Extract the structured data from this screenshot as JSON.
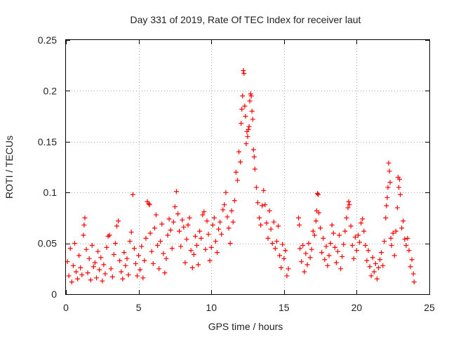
{
  "chart_data": {
    "type": "scatter",
    "title": "Day 331 of 2019, Rate Of TEC Index for receiver laut",
    "xlabel": "GPS time / hours",
    "ylabel": "ROTI / TECUs",
    "xlim": [
      0,
      25
    ],
    "ylim": [
      0,
      0.25
    ],
    "xticks": [
      0,
      5,
      10,
      15,
      20,
      25
    ],
    "xtick_labels": [
      "0",
      "5",
      "10",
      "15",
      "20",
      "25"
    ],
    "yticks": [
      0,
      0.05,
      0.1,
      0.15,
      0.2,
      0.25
    ],
    "ytick_labels": [
      "0",
      "0.05",
      "0.1",
      "0.15",
      "0.2",
      "0.25"
    ],
    "grid": true,
    "marker": "+",
    "color": "#ff0000",
    "series": [
      {
        "name": "ROTI",
        "points": [
          [
            0.1,
            0.032
          ],
          [
            0.2,
            0.018
          ],
          [
            0.3,
            0.045
          ],
          [
            0.4,
            0.012
          ],
          [
            0.5,
            0.028
          ],
          [
            0.6,
            0.05
          ],
          [
            0.7,
            0.022
          ],
          [
            0.8,
            0.015
          ],
          [
            0.9,
            0.038
          ],
          [
            1.0,
            0.026
          ],
          [
            1.1,
            0.019
          ],
          [
            1.2,
            0.058
          ],
          [
            1.25,
            0.068
          ],
          [
            1.3,
            0.075
          ],
          [
            1.4,
            0.044
          ],
          [
            1.5,
            0.021
          ],
          [
            1.6,
            0.035
          ],
          [
            1.7,
            0.014
          ],
          [
            1.8,
            0.048
          ],
          [
            1.9,
            0.027
          ],
          [
            2.0,
            0.031
          ],
          [
            2.1,
            0.016
          ],
          [
            2.2,
            0.042
          ],
          [
            2.3,
            0.024
          ],
          [
            2.4,
            0.036
          ],
          [
            2.5,
            0.013
          ],
          [
            2.6,
            0.029
          ],
          [
            2.7,
            0.02
          ],
          [
            2.8,
            0.046
          ],
          [
            2.9,
            0.057
          ],
          [
            3.0,
            0.058
          ],
          [
            3.1,
            0.025
          ],
          [
            3.2,
            0.017
          ],
          [
            3.3,
            0.039
          ],
          [
            3.4,
            0.05
          ],
          [
            3.5,
            0.067
          ],
          [
            3.6,
            0.072
          ],
          [
            3.7,
            0.033
          ],
          [
            3.8,
            0.022
          ],
          [
            3.9,
            0.015
          ],
          [
            4.0,
            0.041
          ],
          [
            4.1,
            0.028
          ],
          [
            4.2,
            0.035
          ],
          [
            4.3,
            0.019
          ],
          [
            4.4,
            0.052
          ],
          [
            4.5,
            0.061
          ],
          [
            4.6,
            0.098
          ],
          [
            4.7,
            0.045
          ],
          [
            4.8,
            0.03
          ],
          [
            4.9,
            0.018
          ],
          [
            5.0,
            0.038
          ],
          [
            5.1,
            0.024
          ],
          [
            5.2,
            0.047
          ],
          [
            5.3,
            0.016
          ],
          [
            5.4,
            0.033
          ],
          [
            5.5,
            0.055
          ],
          [
            5.6,
            0.091
          ],
          [
            5.7,
            0.089
          ],
          [
            5.75,
            0.088
          ],
          [
            5.8,
            0.06
          ],
          [
            5.9,
            0.042
          ],
          [
            6.0,
            0.03
          ],
          [
            6.1,
            0.065
          ],
          [
            6.2,
            0.078
          ],
          [
            6.3,
            0.048
          ],
          [
            6.4,
            0.025
          ],
          [
            6.5,
            0.052
          ],
          [
            6.6,
            0.069
          ],
          [
            6.7,
            0.04
          ],
          [
            6.8,
            0.021
          ],
          [
            6.9,
            0.035
          ],
          [
            7.0,
            0.058
          ],
          [
            7.1,
            0.074
          ],
          [
            7.2,
            0.063
          ],
          [
            7.3,
            0.045
          ],
          [
            7.4,
            0.071
          ],
          [
            7.5,
            0.086
          ],
          [
            7.6,
            0.101
          ],
          [
            7.7,
            0.079
          ],
          [
            7.8,
            0.062
          ],
          [
            7.9,
            0.047
          ],
          [
            8.0,
            0.073
          ],
          [
            8.1,
            0.066
          ],
          [
            8.2,
            0.031
          ],
          [
            8.3,
            0.054
          ],
          [
            8.4,
            0.068
          ],
          [
            8.5,
            0.075
          ],
          [
            8.6,
            0.043
          ],
          [
            8.7,
            0.026
          ],
          [
            8.8,
            0.039
          ],
          [
            8.9,
            0.057
          ],
          [
            9.0,
            0.048
          ],
          [
            9.1,
            0.029
          ],
          [
            9.2,
            0.062
          ],
          [
            9.3,
            0.055
          ],
          [
            9.4,
            0.078
          ],
          [
            9.5,
            0.081
          ],
          [
            9.6,
            0.044
          ],
          [
            9.7,
            0.072
          ],
          [
            9.8,
            0.059
          ],
          [
            9.9,
            0.033
          ],
          [
            10.0,
            0.046
          ],
          [
            10.1,
            0.068
          ],
          [
            10.2,
            0.075
          ],
          [
            10.3,
            0.052
          ],
          [
            10.4,
            0.041
          ],
          [
            10.5,
            0.064
          ],
          [
            10.6,
            0.071
          ],
          [
            10.7,
            0.059
          ],
          [
            10.8,
            0.083
          ],
          [
            10.9,
            0.088
          ],
          [
            11.0,
            0.1
          ],
          [
            11.1,
            0.076
          ],
          [
            11.2,
            0.065
          ],
          [
            11.3,
            0.05
          ],
          [
            11.4,
            0.082
          ],
          [
            11.5,
            0.071
          ],
          [
            11.6,
            0.092
          ],
          [
            11.7,
            0.12
          ],
          [
            11.8,
            0.112
          ],
          [
            11.9,
            0.14
          ],
          [
            12.0,
            0.13
          ],
          [
            12.05,
            0.168
          ],
          [
            12.1,
            0.182
          ],
          [
            12.15,
            0.195
          ],
          [
            12.2,
            0.22
          ],
          [
            12.25,
            0.217
          ],
          [
            12.3,
            0.185
          ],
          [
            12.35,
            0.175
          ],
          [
            12.4,
            0.148
          ],
          [
            12.45,
            0.16
          ],
          [
            12.5,
            0.155
          ],
          [
            12.55,
            0.162
          ],
          [
            12.6,
            0.165
          ],
          [
            12.65,
            0.19
          ],
          [
            12.7,
            0.197
          ],
          [
            12.75,
            0.195
          ],
          [
            12.8,
            0.18
          ],
          [
            12.85,
            0.172
          ],
          [
            12.9,
            0.142
          ],
          [
            12.95,
            0.135
          ],
          [
            13.0,
            0.123
          ],
          [
            13.1,
            0.105
          ],
          [
            13.2,
            0.09
          ],
          [
            13.3,
            0.075
          ],
          [
            13.4,
            0.068
          ],
          [
            13.5,
            0.087
          ],
          [
            13.6,
            0.102
          ],
          [
            13.7,
            0.088
          ],
          [
            13.8,
            0.07
          ],
          [
            13.9,
            0.055
          ],
          [
            14.0,
            0.082
          ],
          [
            14.1,
            0.064
          ],
          [
            14.2,
            0.05
          ],
          [
            14.3,
            0.071
          ],
          [
            14.4,
            0.045
          ],
          [
            14.5,
            0.052
          ],
          [
            14.6,
            0.067
          ],
          [
            14.7,
            0.038
          ],
          [
            14.8,
            0.026
          ],
          [
            14.9,
            0.049
          ],
          [
            15.0,
            0.035
          ],
          [
            15.1,
            0.043
          ],
          [
            15.2,
            0.018
          ],
          [
            15.3,
            0.025
          ],
          [
            16.0,
            0.075
          ],
          [
            16.05,
            0.068
          ],
          [
            16.1,
            0.045
          ],
          [
            16.2,
            0.032
          ],
          [
            16.3,
            0.048
          ],
          [
            16.4,
            0.022
          ],
          [
            16.5,
            0.04
          ],
          [
            16.6,
            0.029
          ],
          [
            16.7,
            0.05
          ],
          [
            16.8,
            0.036
          ],
          [
            16.9,
            0.044
          ],
          [
            17.0,
            0.062
          ],
          [
            17.1,
            0.058
          ],
          [
            17.2,
            0.072
          ],
          [
            17.25,
            0.082
          ],
          [
            17.3,
            0.099
          ],
          [
            17.35,
            0.098
          ],
          [
            17.4,
            0.08
          ],
          [
            17.5,
            0.065
          ],
          [
            17.6,
            0.041
          ],
          [
            17.7,
            0.055
          ],
          [
            17.8,
            0.034
          ],
          [
            17.9,
            0.047
          ],
          [
            18.0,
            0.028
          ],
          [
            18.1,
            0.038
          ],
          [
            18.2,
            0.05
          ],
          [
            18.3,
            0.068
          ],
          [
            18.4,
            0.06
          ],
          [
            18.5,
            0.046
          ],
          [
            18.6,
            0.031
          ],
          [
            18.7,
            0.042
          ],
          [
            18.8,
            0.058
          ],
          [
            18.9,
            0.025
          ],
          [
            19.0,
            0.037
          ],
          [
            19.1,
            0.049
          ],
          [
            19.2,
            0.062
          ],
          [
            19.3,
            0.075
          ],
          [
            19.4,
            0.085
          ],
          [
            19.45,
            0.091
          ],
          [
            19.5,
            0.088
          ],
          [
            19.6,
            0.067
          ],
          [
            19.7,
            0.048
          ],
          [
            19.8,
            0.035
          ],
          [
            19.9,
            0.056
          ],
          [
            20.0,
            0.043
          ],
          [
            20.1,
            0.058
          ],
          [
            20.2,
            0.051
          ],
          [
            20.3,
            0.07
          ],
          [
            20.4,
            0.074
          ],
          [
            20.5,
            0.062
          ],
          [
            20.6,
            0.048
          ],
          [
            20.7,
            0.033
          ],
          [
            20.8,
            0.043
          ],
          [
            20.9,
            0.027
          ],
          [
            21.0,
            0.018
          ],
          [
            21.1,
            0.036
          ],
          [
            21.2,
            0.022
          ],
          [
            21.3,
            0.03
          ],
          [
            21.4,
            0.015
          ],
          [
            21.5,
            0.026
          ],
          [
            21.6,
            0.034
          ],
          [
            21.7,
            0.041
          ],
          [
            21.8,
            0.028
          ],
          [
            21.9,
            0.052
          ],
          [
            22.0,
            0.075
          ],
          [
            22.05,
            0.087
          ],
          [
            22.1,
            0.095
          ],
          [
            22.15,
            0.105
          ],
          [
            22.2,
            0.129
          ],
          [
            22.25,
            0.121
          ],
          [
            22.3,
            0.11
          ],
          [
            22.35,
            0.055
          ],
          [
            22.4,
            0.048
          ],
          [
            22.5,
            0.06
          ],
          [
            22.6,
            0.038
          ],
          [
            22.7,
            0.062
          ],
          [
            22.8,
            0.085
          ],
          [
            22.85,
            0.115
          ],
          [
            22.9,
            0.105
          ],
          [
            22.95,
            0.113
          ],
          [
            23.0,
            0.098
          ],
          [
            23.1,
            0.065
          ],
          [
            23.2,
            0.072
          ],
          [
            23.3,
            0.054
          ],
          [
            23.4,
            0.048
          ],
          [
            23.5,
            0.055
          ],
          [
            23.6,
            0.043
          ],
          [
            23.7,
            0.027
          ],
          [
            23.8,
            0.034
          ],
          [
            23.9,
            0.02
          ],
          [
            23.95,
            0.012
          ]
        ]
      }
    ]
  }
}
